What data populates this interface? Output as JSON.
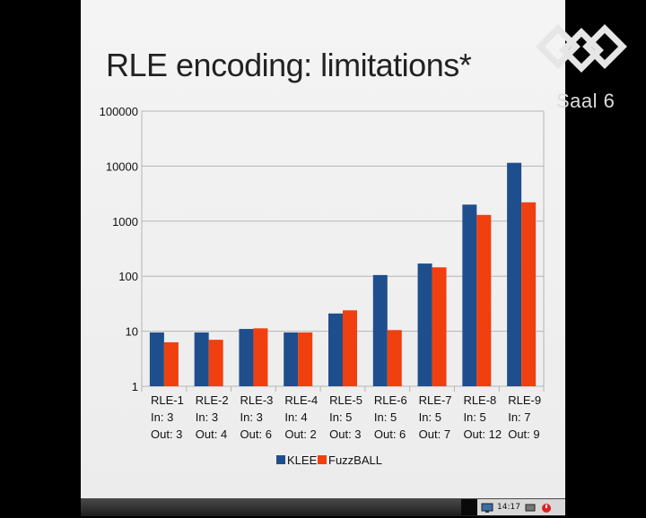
{
  "slide": {
    "title": "RLE encoding: limitations*"
  },
  "watermark": {
    "text": "Saal 6"
  },
  "taskbar": {
    "clock": "14:17"
  },
  "chart_data": {
    "type": "bar",
    "title": "",
    "xlabel": "",
    "ylabel": "",
    "y_scale": "log",
    "ylim": [
      1,
      100000
    ],
    "yticks": [
      "1",
      "10",
      "100",
      "1000",
      "10000",
      "100000"
    ],
    "grid": true,
    "legend_position": "bottom",
    "categories": [
      [
        "RLE-1",
        "In: 3",
        "Out: 3"
      ],
      [
        "RLE-2",
        "In: 3",
        "Out: 4"
      ],
      [
        "RLE-3",
        "In: 3",
        "Out: 6"
      ],
      [
        "RLE-4",
        "In: 4",
        "Out: 2"
      ],
      [
        "RLE-5",
        "In: 5",
        "Out: 3"
      ],
      [
        "RLE-6",
        "In: 5",
        "Out: 6"
      ],
      [
        "RLE-7",
        "In: 5",
        "Out: 7"
      ],
      [
        "RLE-8",
        "In: 5",
        "Out: 12"
      ],
      [
        "RLE-9",
        "In: 7",
        "Out: 9"
      ]
    ],
    "series": [
      {
        "name": "KLEE",
        "color": "#1f4e8c",
        "values": [
          9.5,
          9.5,
          11,
          9.5,
          21,
          105,
          170,
          2000,
          11500
        ]
      },
      {
        "name": "FuzzBALL",
        "color": "#f0400f",
        "values": [
          6.3,
          7,
          11.3,
          9.5,
          24,
          10.5,
          145,
          1300,
          2200
        ]
      }
    ]
  }
}
